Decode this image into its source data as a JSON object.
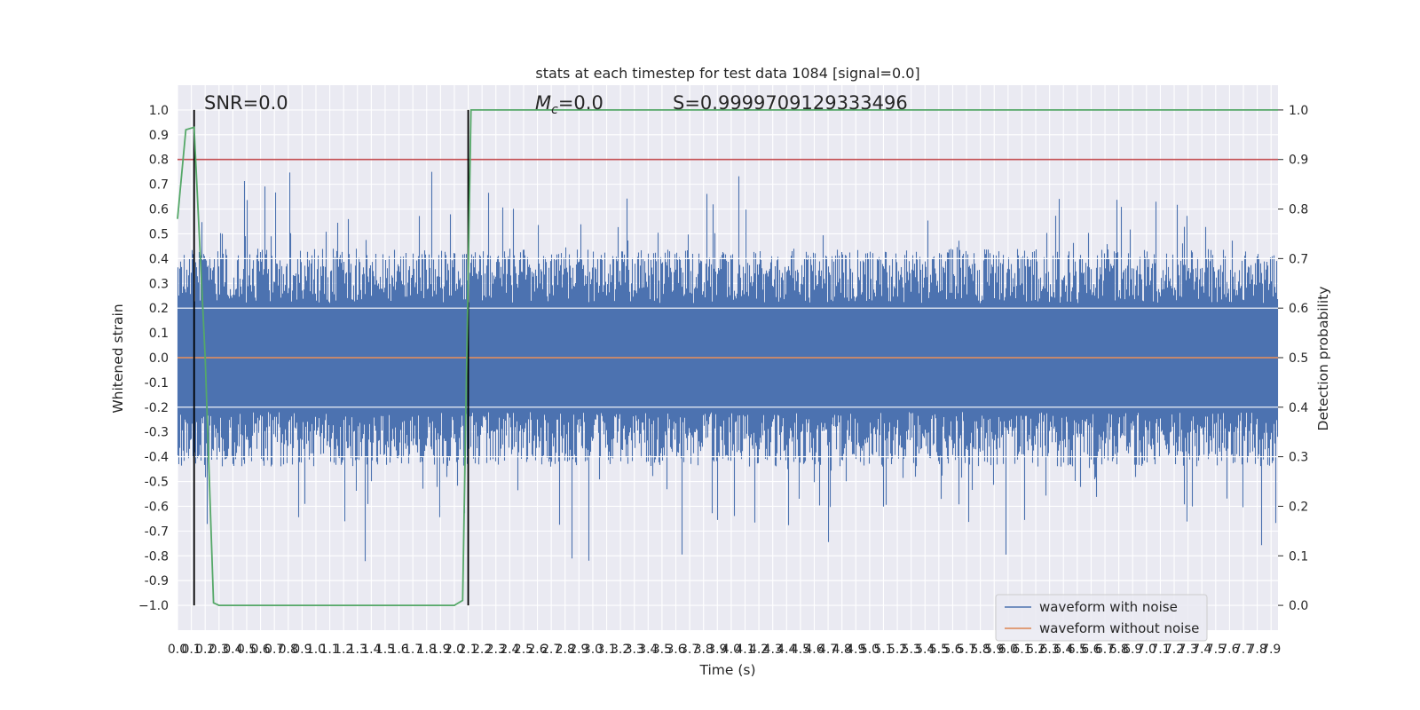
{
  "chart_data": {
    "type": "line",
    "title": "stats at each timestep for test data 1084 [signal=0.0]",
    "xlabel": "Time (s)",
    "ylabel": "Whitened strain",
    "ylabel_right": "Detection probability",
    "xlim": [
      0.0,
      7.95
    ],
    "ylim": [
      -1.1,
      1.1
    ],
    "ylim_right": [
      -0.05,
      1.05
    ],
    "x_ticks": [
      "0.0",
      "0.1",
      "0.2",
      "0.3",
      "0.4",
      "0.5",
      "0.6",
      "0.7",
      "0.8",
      "0.9",
      "1.0",
      "1.1",
      "1.2",
      "1.3",
      "1.4",
      "1.5",
      "1.6",
      "1.7",
      "1.8",
      "1.9",
      "2.0",
      "2.1",
      "2.2",
      "2.3",
      "2.4",
      "2.5",
      "2.6",
      "2.7",
      "2.8",
      "2.9",
      "3.0",
      "3.1",
      "3.2",
      "3.3",
      "3.4",
      "3.5",
      "3.6",
      "3.7",
      "3.8",
      "3.9",
      "4.0",
      "4.1",
      "4.2",
      "4.3",
      "4.4",
      "4.5",
      "4.6",
      "4.7",
      "4.8",
      "4.9",
      "5.0",
      "5.1",
      "5.2",
      "5.3",
      "5.4",
      "5.5",
      "5.6",
      "5.7",
      "5.8",
      "5.9",
      "6.0",
      "6.1",
      "6.2",
      "6.3",
      "6.4",
      "6.5",
      "6.6",
      "6.7",
      "6.8",
      "6.9",
      "7.0",
      "7.1",
      "7.2",
      "7.3",
      "7.4",
      "7.5",
      "7.6",
      "7.7",
      "7.8",
      "7.9"
    ],
    "y_ticks": [
      "1.0",
      "0.9",
      "0.8",
      "0.7",
      "0.6",
      "0.5",
      "0.4",
      "0.3",
      "0.2",
      "0.1",
      "0.0",
      "-0.1",
      "-0.2",
      "-0.3",
      "-0.4",
      "-0.5",
      "-0.6",
      "-0.7",
      "-0.8",
      "-0.9",
      "−1.0"
    ],
    "y_ticks_right": [
      "1.0",
      "0.9",
      "0.8",
      "0.7",
      "0.6",
      "0.5",
      "0.4",
      "0.3",
      "0.2",
      "0.1",
      "0.0"
    ],
    "grid": true,
    "legend_position": "lower-right",
    "series": [
      {
        "name": "waveform with noise",
        "color": "#4c72b0",
        "kind": "noise-envelope"
      },
      {
        "name": "waveform without noise",
        "color": "#dd8452",
        "kind": "flat",
        "value": 0.0
      },
      {
        "kind": "detection-probability",
        "axis": "right",
        "color": "#55a868",
        "x": [
          0.0,
          0.06,
          0.12,
          0.2,
          0.26,
          0.3,
          2.0,
          2.06,
          2.12,
          7.95
        ],
        "y": [
          0.78,
          0.96,
          0.965,
          0.5,
          0.005,
          0.0,
          0.0,
          0.01,
          1.0,
          1.0
        ]
      }
    ],
    "threshold_line": {
      "value": 0.8,
      "color": "#c44e52"
    },
    "vertical_markers": [
      0.12,
      2.1
    ],
    "annotations": {
      "snr": "SNR=0.0",
      "mc_symbol": "M",
      "mc_sub": "c",
      "mc_value": "=0.0",
      "s_value": "S=0.9999709129333496"
    }
  }
}
